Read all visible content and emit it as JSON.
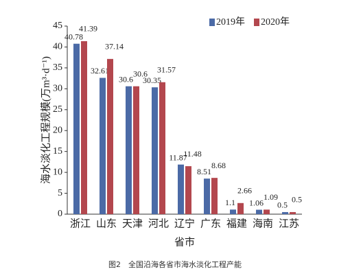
{
  "chart_data": {
    "type": "bar",
    "x_label": "省市",
    "y_label": "海水淡化工程规模(万m³·d⁻¹)",
    "caption": "图2　全国沿海各省市海水淡化工程产能",
    "categories": [
      "浙江",
      "山东",
      "天津",
      "河北",
      "辽宁",
      "广东",
      "福建",
      "海南",
      "江苏"
    ],
    "series": [
      {
        "name": "2019年",
        "color": "#4b6aa6",
        "values": [
          40.78,
          32.61,
          30.6,
          30.35,
          11.87,
          8.51,
          1.1,
          1.06,
          0.5
        ]
      },
      {
        "name": "2020年",
        "color": "#b3474e",
        "values": [
          41.39,
          37.14,
          30.6,
          31.57,
          11.48,
          8.68,
          2.66,
          1.09,
          0.5
        ]
      }
    ],
    "ylim": [
      0,
      45
    ],
    "yticks": [
      0,
      5,
      10,
      15,
      20,
      25,
      30,
      35,
      40,
      45
    ],
    "legend": "top-right"
  }
}
